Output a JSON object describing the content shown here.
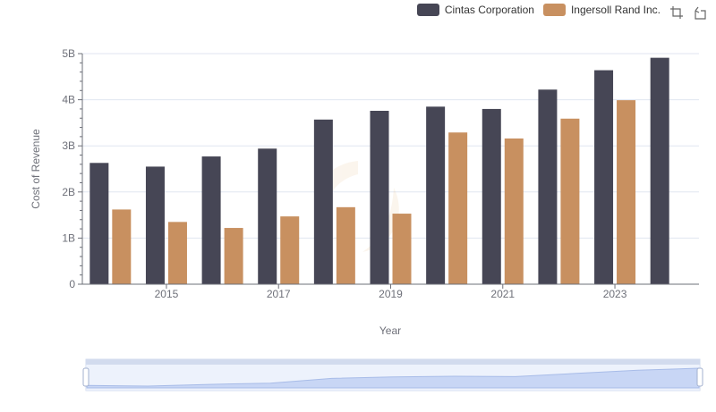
{
  "chart_data": {
    "type": "bar",
    "xlabel": "Year",
    "ylabel": "Cost of Revenue",
    "x_tick_labels": [
      "2015",
      "2017",
      "2019",
      "2021",
      "2023"
    ],
    "y_tick_labels": [
      "0",
      "1B",
      "2B",
      "3B",
      "4B",
      "5B"
    ],
    "ylim": [
      0,
      5000000000
    ],
    "categories": [
      "2014",
      "2015",
      "2016",
      "2017",
      "2018",
      "2019",
      "2020",
      "2021",
      "2022",
      "2023",
      "2024"
    ],
    "series": [
      {
        "name": "Cintas Corporation",
        "color": "#464655",
        "values": [
          2630000000,
          2550000000,
          2770000000,
          2940000000,
          3570000000,
          3760000000,
          3850000000,
          3800000000,
          4220000000,
          4640000000,
          4910000000
        ]
      },
      {
        "name": "Ingersoll Rand Inc.",
        "color": "#c89060",
        "values": [
          1620000000,
          1350000000,
          1220000000,
          1470000000,
          1670000000,
          1530000000,
          3290000000,
          3160000000,
          3590000000,
          3990000000,
          null
        ]
      }
    ],
    "grid": true,
    "legend_position": "top-right"
  },
  "toolbar": {
    "icons": [
      "zoom-icon",
      "restore-icon"
    ]
  }
}
